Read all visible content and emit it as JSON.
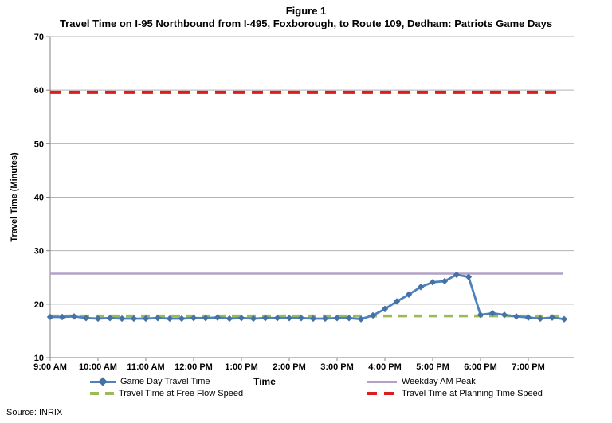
{
  "title": {
    "line1": "Figure 1",
    "line2": "Travel Time on I-95 Northbound from I-495, Foxborough, to Route 109, Dedham: Patriots Game Days"
  },
  "source": "Source: INRIX",
  "colors": {
    "game_day_line": "#4F81BD",
    "game_day_marker": "#4472A4",
    "weekday_am_peak": "#B3A2C7",
    "free_flow": "#9BBB59",
    "planning_time": "#E01B1B",
    "gridline": "#B3B3B3",
    "axis": "#808080",
    "text": "#000000"
  },
  "chart_data": {
    "type": "line",
    "title": "Travel Time on I-95 Northbound from I-495, Foxborough, to Route 109, Dedham: Patriots Game Days",
    "xlabel": "Time",
    "ylabel": "Travel Time (Minutes)",
    "ylim": [
      10,
      70
    ],
    "y_ticks": [
      10,
      20,
      30,
      40,
      50,
      60,
      70
    ],
    "x_ticks": [
      "9:00 AM",
      "10:00 AM",
      "11:00 AM",
      "12:00 PM",
      "1:00 PM",
      "2:00 PM",
      "3:00 PM",
      "4:00 PM",
      "5:00 PM",
      "6:00 PM",
      "7:00 PM"
    ],
    "x_tick_hours": [
      9,
      10,
      11,
      12,
      13,
      14,
      15,
      16,
      17,
      18,
      19
    ],
    "grid": "horizontal",
    "legend_position": "bottom",
    "series": [
      {
        "name": "Game Day Travel Time",
        "type": "line+markers",
        "color": "#4F81BD",
        "marker": "diamond",
        "x_hours": [
          9.0,
          9.25,
          9.5,
          9.75,
          10.0,
          10.25,
          10.5,
          10.75,
          11.0,
          11.25,
          11.5,
          11.75,
          12.0,
          12.25,
          12.5,
          12.75,
          13.0,
          13.25,
          13.5,
          13.75,
          14.0,
          14.25,
          14.5,
          14.75,
          15.0,
          15.25,
          15.5,
          15.75,
          16.0,
          16.25,
          16.5,
          16.75,
          17.0,
          17.25,
          17.5,
          17.75,
          18.0,
          18.25,
          18.5,
          18.75,
          19.0,
          19.25,
          19.5,
          19.75
        ],
        "values": [
          17.6,
          17.6,
          17.7,
          17.4,
          17.3,
          17.4,
          17.3,
          17.3,
          17.3,
          17.4,
          17.3,
          17.3,
          17.4,
          17.4,
          17.5,
          17.3,
          17.4,
          17.3,
          17.4,
          17.4,
          17.4,
          17.4,
          17.3,
          17.3,
          17.4,
          17.4,
          17.2,
          17.9,
          19.1,
          20.5,
          21.8,
          23.2,
          24.1,
          24.3,
          25.5,
          25.1,
          18.0,
          18.3,
          18.0,
          17.7,
          17.5,
          17.3,
          17.5,
          17.2
        ]
      },
      {
        "name": "Weekday AM Peak",
        "type": "hline",
        "value": 25.7,
        "color": "#B3A2C7",
        "width": 2.5,
        "dash": "",
        "x_end_hour": 19.72
      },
      {
        "name": "Travel Time at Free Flow Speed",
        "type": "hline",
        "value": 17.8,
        "color": "#9BBB59",
        "width": 3.5,
        "dash": "11,8",
        "x_end_hour": 19.75
      },
      {
        "name": "Travel Time at Planning Time Speed",
        "type": "hline",
        "value": 59.6,
        "color": "#E01B1B",
        "width": 4,
        "dash": "14,9",
        "x_end_hour": 19.6
      }
    ]
  }
}
